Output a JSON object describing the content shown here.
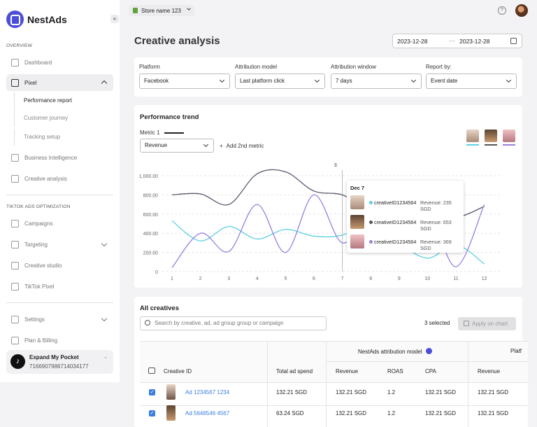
{
  "app": {
    "name": "NestAds"
  },
  "sidebar": {
    "overview_label": "OVERVIEW",
    "dashboard": "Dashboard",
    "pixel": "Pixel",
    "pixel_sub": [
      "Performance report",
      "Customer journey",
      "Tracking setup"
    ],
    "business_intelligence": "Business Intelligence",
    "creative_analysis": "Creative analysis",
    "tiktok_label": "TIKTOK ADS OPTIMIZATION",
    "campaigns": "Campaigns",
    "targeting": "Targeting",
    "creative_studio": "Creative studio",
    "tiktok_pixel": "TikTok Pixel",
    "settings": "Settings",
    "plan_billing": "Plan & Billing",
    "account": {
      "name": "Expand My Pocket",
      "id": "7166907986714034177"
    }
  },
  "header": {
    "store": "Store name 123"
  },
  "page": {
    "title": "Creative analysis",
    "date_from": "2023-12-28",
    "date_to": "2023-12-28"
  },
  "filters": [
    {
      "label": "Platform",
      "value": "Facebook"
    },
    {
      "label": "Attribution model",
      "value": "Last platform click"
    },
    {
      "label": "Attribution window",
      "value": "7 days"
    },
    {
      "label": "Report by:",
      "value": "Event date"
    }
  ],
  "trend": {
    "title": "Performance trend",
    "metric_label": "Metric 1",
    "metric_value": "Revenue",
    "add_metric": "Add 2nd metric"
  },
  "chart_data": {
    "type": "line",
    "ylabel": "$",
    "x": [
      1,
      2,
      3,
      4,
      5,
      6,
      7,
      8,
      9,
      10,
      11,
      12
    ],
    "yticks": [
      "0",
      "200.00",
      "400.00",
      "600.00",
      "800.00",
      "1,000.00"
    ],
    "ylim": [
      0,
      1000
    ],
    "grid": true,
    "series": [
      {
        "color": "#5c5870",
        "values": [
          800,
          810,
          700,
          1020,
          1040,
          840,
          800,
          640,
          640,
          580,
          560,
          680
        ]
      },
      {
        "color": "#5dd0e0",
        "values": [
          530,
          320,
          470,
          340,
          440,
          370,
          380,
          520,
          300,
          140,
          280,
          80
        ]
      },
      {
        "color": "#9b7ee0",
        "values": [
          40,
          400,
          210,
          700,
          200,
          800,
          300,
          610,
          470,
          650,
          50,
          700
        ]
      }
    ],
    "tooltip": {
      "title": "Dec 7",
      "rows": [
        {
          "name": "creativeID1234564",
          "value": "Revenue: 235 SGD",
          "color": "#5dd0e0"
        },
        {
          "name": "creativeID1234564",
          "value": "Revenue: 653 SGD",
          "color": "#555"
        },
        {
          "name": "creativeID1234564",
          "value": "Revenue: 369 SGD",
          "color": "#9b7ee0"
        }
      ]
    }
  },
  "creatives": {
    "title": "All creatives",
    "search_placeholder": "Search by creative, ad, ad group group or campaign",
    "selected": "3 selected",
    "apply": "Apply on chart",
    "group_header": "NestAds attribution model",
    "group_header2": "Platf",
    "columns": [
      "Creative ID",
      "Total ad spend",
      "Revenue",
      "ROAS",
      "CPA",
      "Revenue"
    ],
    "rows": [
      {
        "id": "Ad 1234567 1234",
        "spend": "132.21 SGD",
        "revenue": "132.21 SGD",
        "roas": "1.2",
        "cpa": "132.21 SGD",
        "revenue2": "132.21 SGD"
      },
      {
        "id": "Ad 5646546 4567",
        "spend": "63.24 SGD",
        "revenue": "132.21 SGD",
        "roas": "1.2",
        "cpa": "132.21 SGD",
        "revenue2": "132.21 SGD"
      }
    ]
  }
}
